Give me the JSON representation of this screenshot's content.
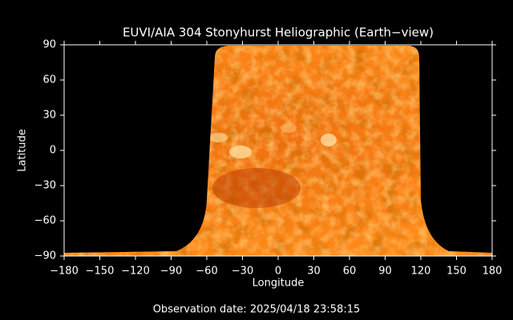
{
  "chart_data": {
    "type": "map",
    "title": "EUVI/AIA 304 Stonyhurst Heliographic (Earth−view)",
    "x_label": "Longitude",
    "y_label": "Latitude",
    "footer": "Observation date: 2025/04/18 23:58:15",
    "xlim": [
      -180,
      180
    ],
    "xticks": [
      {
        "value": -180,
        "label": "−180"
      },
      {
        "value": -150,
        "label": "−150"
      },
      {
        "value": -120,
        "label": "−120"
      },
      {
        "value": -90,
        "label": "−90"
      },
      {
        "value": -60,
        "label": "−60"
      },
      {
        "value": -30,
        "label": "−30"
      },
      0,
      30,
      60,
      90,
      120,
      150,
      180
    ],
    "ylim": [
      -90,
      90
    ],
    "yticks": [
      {
        "value": -90,
        "label": "−90"
      },
      {
        "value": -60,
        "label": "−60"
      },
      {
        "value": -30,
        "label": "−30"
      },
      0,
      30,
      60,
      90
    ]
  }
}
